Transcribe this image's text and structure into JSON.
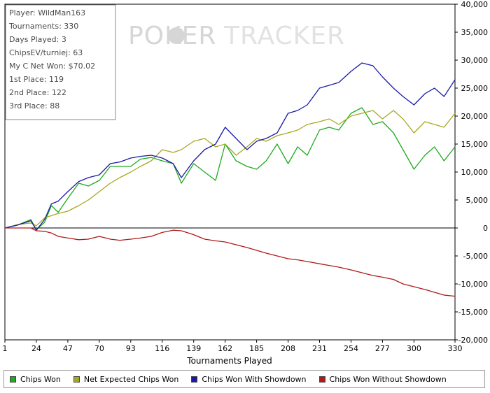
{
  "watermark": {
    "left": "POKER",
    "right": "TRACKER"
  },
  "info_box": {
    "lines": [
      "Player: WildMan163",
      "Tournaments: 330",
      "Days Played: 3",
      "ChipsEV/turniej: 63",
      "My C Net Won: $70.02",
      "1st Place: 119",
      "2nd Place: 122",
      "3rd Place: 88"
    ]
  },
  "chart_data": {
    "type": "line",
    "title": "",
    "xlabel": "Tournaments Played",
    "ylabel": "",
    "xlim": [
      1,
      330
    ],
    "ylim": [
      -20000,
      40000
    ],
    "x_ticks": [
      1,
      24,
      47,
      70,
      93,
      116,
      139,
      162,
      185,
      208,
      231,
      254,
      277,
      300,
      330
    ],
    "x_tick_labels": [
      "1",
      "24",
      "47",
      "70",
      "93",
      "116",
      "139",
      "162",
      "185",
      "208",
      "231",
      "254",
      "277",
      "300",
      "330"
    ],
    "y_ticks": [
      40000,
      35000,
      30000,
      25000,
      20000,
      15000,
      10000,
      5000,
      0,
      -5000,
      -10000,
      -15000,
      -20000
    ],
    "y_tick_labels": [
      "40,000",
      "35,000",
      "30,000",
      "25,000",
      "20,000",
      "15,000",
      "10,000",
      "5,000",
      "0",
      "-5,000",
      "-10,000",
      "-15,000",
      "-20,000"
    ],
    "grid": false,
    "legend_position": "bottom",
    "x": [
      1,
      10,
      20,
      24,
      30,
      35,
      40,
      47,
      55,
      62,
      70,
      78,
      85,
      93,
      100,
      108,
      116,
      124,
      130,
      139,
      147,
      155,
      162,
      170,
      178,
      185,
      192,
      200,
      208,
      215,
      222,
      231,
      238,
      245,
      254,
      262,
      270,
      277,
      285,
      292,
      300,
      308,
      315,
      322,
      330
    ],
    "series": [
      {
        "name": "Chips Won",
        "color": "#1faa1f",
        "values": [
          0,
          500,
          1500,
          -300,
          1000,
          4000,
          2800,
          5300,
          8000,
          7500,
          8500,
          11000,
          11000,
          11000,
          12300,
          12600,
          12000,
          11500,
          8000,
          11500,
          10000,
          8500,
          15000,
          12000,
          11000,
          10500,
          12000,
          15000,
          11500,
          14500,
          13000,
          17500,
          18000,
          17500,
          20500,
          21500,
          18500,
          19000,
          17000,
          14000,
          10500,
          13000,
          14500,
          12000,
          14500
        ]
      },
      {
        "name": "Net Expected Chips Won",
        "color": "#a8a820",
        "values": [
          0,
          600,
          900,
          400,
          1800,
          2200,
          2600,
          3000,
          4000,
          5000,
          6500,
          8000,
          9000,
          10000,
          11000,
          12000,
          14000,
          13500,
          14000,
          15500,
          16000,
          14500,
          15000,
          13000,
          14500,
          16000,
          15500,
          16500,
          17000,
          17500,
          18500,
          19000,
          19500,
          18500,
          20000,
          20500,
          21000,
          19500,
          21000,
          19500,
          17000,
          19000,
          18500,
          18000,
          20500
        ]
      },
      {
        "name": "Chips Won With Showdown",
        "color": "#1a1aa8",
        "values": [
          0,
          500,
          1300,
          -400,
          1500,
          4300,
          4800,
          6500,
          8300,
          9000,
          9500,
          11500,
          11800,
          12500,
          12800,
          13000,
          12500,
          11500,
          9000,
          12000,
          14000,
          15000,
          18000,
          16000,
          14000,
          15500,
          16000,
          17000,
          20500,
          21000,
          22000,
          25000,
          25500,
          26000,
          28000,
          29500,
          29000,
          27000,
          25000,
          23500,
          22000,
          24000,
          25000,
          23500,
          26500
        ]
      },
      {
        "name": "Chips Won Without Showdown",
        "color": "#b01a1a",
        "values": [
          0,
          0,
          0,
          -500,
          -600,
          -900,
          -1500,
          -1800,
          -2100,
          -2000,
          -1500,
          -2000,
          -2200,
          -2000,
          -1800,
          -1500,
          -800,
          -400,
          -500,
          -1200,
          -2000,
          -2300,
          -2500,
          -3000,
          -3500,
          -4000,
          -4500,
          -5000,
          -5500,
          -5700,
          -6000,
          -6400,
          -6700,
          -7000,
          -7500,
          -8000,
          -8500,
          -8800,
          -9200,
          -10000,
          -10500,
          -11000,
          -11500,
          -12000,
          -12200
        ]
      }
    ]
  }
}
